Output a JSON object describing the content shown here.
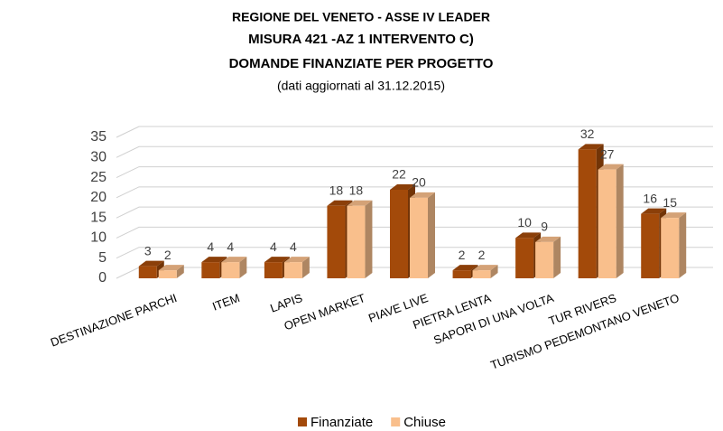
{
  "chart_data": {
    "type": "bar3d",
    "title": [
      "REGIONE DEL VENETO - ASSE IV LEADER",
      "MISURA 421 -AZ 1 INTERVENTO C)",
      "DOMANDE FINANZIATE PER PROGETTO"
    ],
    "subtitle": "(dati aggiornati al 31.12.2015)",
    "categories": [
      "DESTINAZIONE PARCHI",
      "ITEM",
      "LAPIS",
      "OPEN MARKET",
      "PIAVE LIVE",
      "PIETRA LENTA",
      "SAPORI DI UNA VOLTA",
      "TUR RIVERS",
      "TURISMO PEDEMONTANO VENETO"
    ],
    "series": [
      {
        "name": "Finanziate",
        "color": "#a34a0a",
        "values": [
          3,
          4,
          4,
          18,
          22,
          2,
          10,
          32,
          16
        ]
      },
      {
        "name": "Chiuse",
        "color": "#f9bf8c",
        "values": [
          2,
          4,
          4,
          18,
          20,
          2,
          9,
          27,
          15
        ]
      }
    ],
    "ylim": [
      0,
      35
    ],
    "yticks": [
      0,
      5,
      10,
      15,
      20,
      25,
      30,
      35
    ],
    "grid": true,
    "legend": "bottom"
  }
}
